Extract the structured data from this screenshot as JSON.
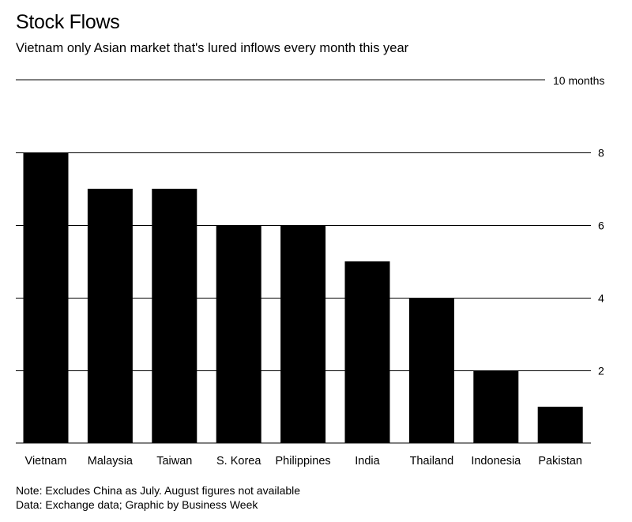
{
  "header": {
    "title": "Stock Flows",
    "subtitle": "Vietnam only Asian market that's lured inflows every month this year"
  },
  "notes": {
    "note": "Note: Excludes China as July. August figures not available",
    "source": "Data: Exchange data; Graphic by Business Week"
  },
  "chart_data": {
    "type": "bar",
    "title": "Stock Flows",
    "subtitle": "Vietnam only Asian market that's lured inflows every month this year",
    "categories": [
      "Vietnam",
      "Malaysia",
      "Taiwan",
      "S. Korea",
      "Philippines",
      "India",
      "Thailand",
      "Indonesia",
      "Pakistan"
    ],
    "values": [
      8,
      7,
      7,
      6,
      6,
      5,
      4,
      2,
      1
    ],
    "xlabel": "",
    "ylabel": "",
    "ylim": [
      0,
      10
    ],
    "yticks": [
      2,
      4,
      6,
      8
    ],
    "top_line_label": "10 months",
    "grid": true,
    "bar_color": "#000000"
  }
}
